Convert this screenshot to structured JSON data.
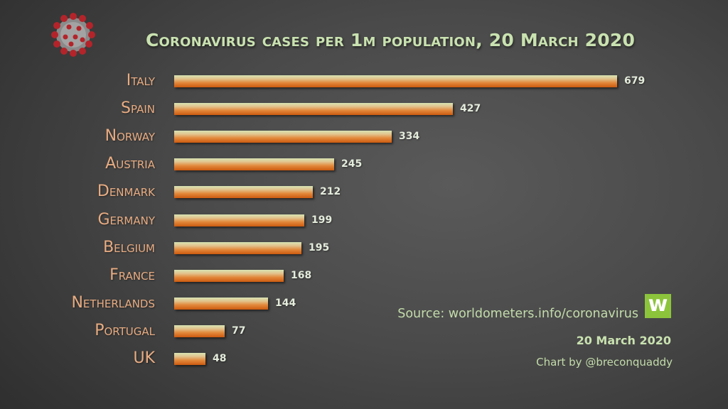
{
  "title": "Coronavirus cases per 1m population, 20 March 2020",
  "chart_data": {
    "type": "bar",
    "orientation": "horizontal",
    "title": "Coronavirus cases per 1m population, 20 March 2020",
    "xlabel": "",
    "ylabel": "",
    "categories": [
      "Italy",
      "Spain",
      "Norway",
      "Austria",
      "Denmark",
      "Germany",
      "Belgium",
      "France",
      "Netherlands",
      "Portugal",
      "UK"
    ],
    "values": [
      679,
      427,
      334,
      245,
      212,
      199,
      195,
      168,
      144,
      77,
      48
    ],
    "xlim": [
      0,
      679
    ],
    "grid": false,
    "legend": null,
    "data_labels": true,
    "annotations": [
      "Source: worldometers.info/coronavirus",
      "20 March 2020",
      "Chart by @breconquaddy"
    ]
  },
  "colors": {
    "title": "#c9e2b0",
    "label": "#e8ac82",
    "bar_top": "#d8e4b4",
    "bar_bottom": "#cc5a10",
    "value": "#e4ecdc",
    "logo": "#8cc43c"
  },
  "footer": {
    "source": "Source: worldometers.info/coronavirus",
    "logo_letter": "w",
    "date": "20 March 2020",
    "credit": "Chart by @breconquaddy"
  }
}
